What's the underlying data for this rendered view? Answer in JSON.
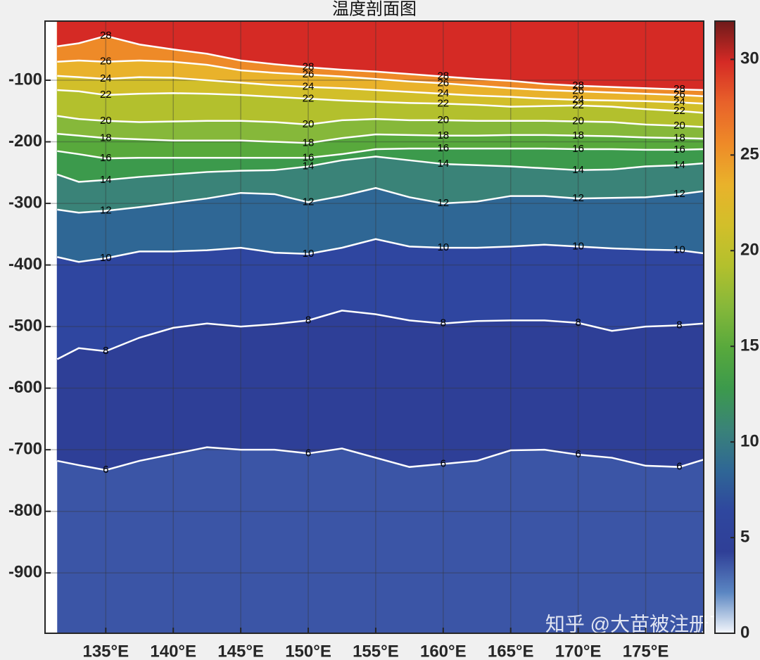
{
  "chart_data": {
    "type": "contour",
    "title": "温度剖面图",
    "watermark": "知乎 @大苗被注册了",
    "x": [
      131.4,
      133,
      135,
      137.5,
      140,
      142.5,
      145,
      147.5,
      150,
      152.5,
      155,
      157.5,
      160,
      162.5,
      165,
      167.5,
      170,
      172.5,
      175,
      177.5,
      179.3
    ],
    "series": [
      {
        "name": "28",
        "color": "#e8622a",
        "values": [
          -45,
          -40,
          -28,
          -42,
          -50,
          -57,
          -68,
          -74,
          -79,
          -83,
          -86,
          -90,
          -94,
          -98,
          -101,
          -106,
          -109,
          -111,
          -113,
          -115,
          -116
        ]
      },
      {
        "name": "26",
        "color": "#ee8a28",
        "values": [
          -70,
          -68,
          -70,
          -68,
          -70,
          -75,
          -84,
          -88,
          -91,
          -94,
          -98,
          -102,
          -105,
          -109,
          -113,
          -116,
          -118,
          -120,
          -122,
          -124,
          -126
        ]
      },
      {
        "name": "24",
        "color": "#e9b22b",
        "values": [
          -93,
          -95,
          -98,
          -95,
          -96,
          -100,
          -104,
          -108,
          -111,
          -113,
          -116,
          -119,
          -122,
          -125,
          -127,
          -130,
          -132,
          -133,
          -134,
          -136,
          -138
        ]
      },
      {
        "name": "22",
        "color": "#d2bf2a",
        "values": [
          -116,
          -118,
          -124,
          -122,
          -121,
          -122,
          -124,
          -127,
          -130,
          -133,
          -135,
          -137,
          -138,
          -140,
          -143,
          -142,
          -141,
          -143,
          -147,
          -150,
          -153
        ]
      },
      {
        "name": "20",
        "color": "#b3c02d",
        "values": [
          -158,
          -163,
          -166,
          -168,
          -167,
          -166,
          -166,
          -168,
          -172,
          -165,
          -163,
          -165,
          -165,
          -166,
          -166,
          -166,
          -167,
          -168,
          -172,
          -174,
          -176
        ]
      },
      {
        "name": "18",
        "color": "#86b83a",
        "values": [
          -187,
          -190,
          -194,
          -196,
          -198,
          -198,
          -198,
          -200,
          -202,
          -194,
          -188,
          -189,
          -190,
          -190,
          -189,
          -189,
          -190,
          -191,
          -193,
          -194,
          -195
        ]
      },
      {
        "name": "16",
        "color": "#58a93c",
        "values": [
          -215,
          -220,
          -227,
          -226,
          -226,
          -226,
          -226,
          -226,
          -226,
          -220,
          -212,
          -211,
          -211,
          -211,
          -211,
          -211,
          -212,
          -212,
          -213,
          -213,
          -212
        ]
      },
      {
        "name": "14",
        "color": "#3c9a4c",
        "values": [
          -253,
          -265,
          -262,
          -257,
          -253,
          -249,
          -247,
          -246,
          -240,
          -230,
          -224,
          -230,
          -236,
          -238,
          -240,
          -243,
          -246,
          -245,
          -240,
          -238,
          -235
        ]
      },
      {
        "name": "12",
        "color": "#3a8378",
        "values": [
          -310,
          -315,
          -312,
          -306,
          -299,
          -292,
          -283,
          -285,
          -298,
          -288,
          -275,
          -290,
          -300,
          -297,
          -288,
          -288,
          -292,
          -291,
          -290,
          -285,
          -280
        ]
      },
      {
        "name": "10",
        "color": "#2f6795",
        "values": [
          -387,
          -395,
          -389,
          -378,
          -378,
          -376,
          -372,
          -380,
          -382,
          -372,
          -358,
          -370,
          -372,
          -372,
          -370,
          -367,
          -370,
          -373,
          -375,
          -376,
          -381
        ]
      },
      {
        "name": "8",
        "color": "#2f46a0",
        "values": [
          -553,
          -535,
          -540,
          -518,
          -502,
          -495,
          -500,
          -496,
          -490,
          -474,
          -480,
          -490,
          -495,
          -491,
          -490,
          -490,
          -494,
          -507,
          -500,
          -498,
          -495
        ]
      },
      {
        "name": "6",
        "color": "#2e3f97",
        "values": [
          -718,
          -725,
          -733,
          -718,
          -707,
          -696,
          -700,
          -700,
          -706,
          -698,
          -713,
          -728,
          -723,
          -718,
          -701,
          -700,
          -708,
          -713,
          -726,
          -728,
          -716
        ]
      }
    ],
    "fill_above": "#d52a25",
    "fill_below": "#3b55a6",
    "xlim": [
      130.5,
      179.3
    ],
    "xticks": [
      {
        "value": 135,
        "label": "135°E"
      },
      {
        "value": 140,
        "label": "140°E"
      },
      {
        "value": 145,
        "label": "145°E"
      },
      {
        "value": 150,
        "label": "150°E"
      },
      {
        "value": 155,
        "label": "155°E"
      },
      {
        "value": 160,
        "label": "160°E"
      },
      {
        "value": 165,
        "label": "165°E"
      },
      {
        "value": 170,
        "label": "170°E"
      },
      {
        "value": 175,
        "label": "175°E"
      }
    ],
    "ylim": [
      -998,
      -4
    ],
    "yticks": [
      -100,
      -200,
      -300,
      -400,
      -500,
      -600,
      -700,
      -800,
      -900
    ],
    "grid": true,
    "colorbar": {
      "clim": [
        0,
        32
      ],
      "ticks": [
        0,
        5,
        10,
        15,
        20,
        25,
        30
      ],
      "colormap": [
        "#f4f7fb",
        "#5b86c2",
        "#2f3f97",
        "#2f479e",
        "#2f6795",
        "#3a8378",
        "#3c9a4c",
        "#58a93c",
        "#86b83a",
        "#b3c02d",
        "#d2bf2a",
        "#e9b22b",
        "#ee8a28",
        "#e8622a",
        "#d52a25",
        "#6e1a1a"
      ]
    }
  }
}
